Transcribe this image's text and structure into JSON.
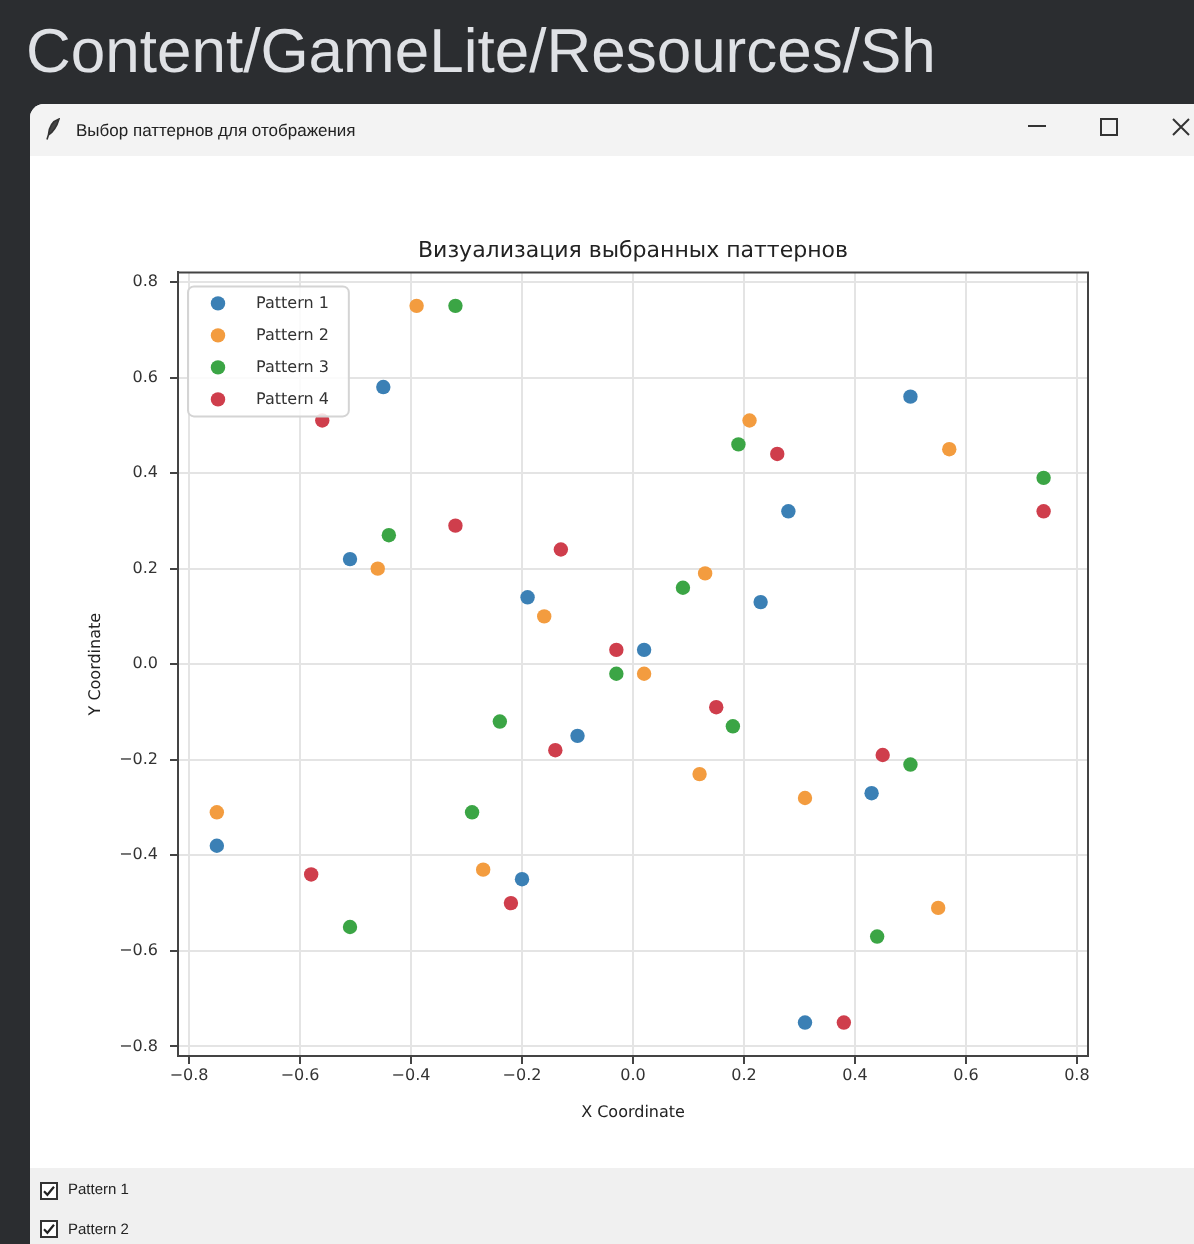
{
  "chart_data": {
    "type": "scatter",
    "title": "Визуализация выбранных паттернов",
    "xlabel": "X Coordinate",
    "ylabel": "Y Coordinate",
    "annotations": [
      "Content/GameLite/Resources/Sh",
      "Выбор паттернов для отображения",
      "Pattern 1",
      "Pattern 2"
    ],
    "series": [
      {
        "name": "Pattern 1",
        "color": "#3b80b5",
        "x": [
          -0.45,
          -0.51,
          -0.19,
          0.02,
          0.5,
          0.28,
          0.23,
          -0.1,
          -0.75,
          -0.2,
          0.43,
          0.31
        ],
        "values": [
          0.58,
          0.22,
          0.14,
          0.03,
          0.56,
          0.32,
          0.13,
          -0.15,
          -0.38,
          -0.45,
          -0.27,
          -0.75
        ]
      },
      {
        "name": "Pattern 2",
        "color": "#f39c3f",
        "x": [
          -0.39,
          -0.46,
          -0.16,
          0.02,
          0.21,
          0.57,
          0.13,
          -0.75,
          -0.27,
          0.12,
          0.31,
          0.55
        ],
        "values": [
          0.75,
          0.2,
          0.1,
          -0.02,
          0.51,
          0.45,
          0.19,
          -0.31,
          -0.43,
          -0.23,
          -0.28,
          -0.51
        ]
      },
      {
        "name": "Pattern 3",
        "color": "#3ba545",
        "x": [
          -0.32,
          -0.44,
          -0.03,
          0.19,
          0.74,
          0.09,
          -0.24,
          -0.29,
          -0.51,
          0.18,
          0.5,
          0.44
        ],
        "values": [
          0.75,
          0.27,
          -0.02,
          0.46,
          0.39,
          0.16,
          -0.12,
          -0.31,
          -0.55,
          -0.13,
          -0.21,
          -0.57
        ]
      },
      {
        "name": "Pattern 4",
        "color": "#cf3e4c",
        "x": [
          -0.56,
          -0.32,
          -0.13,
          -0.03,
          0.26,
          0.74,
          -0.14,
          -0.22,
          -0.58,
          0.15,
          0.45,
          0.38
        ],
        "values": [
          0.51,
          0.29,
          0.24,
          0.03,
          0.44,
          0.32,
          -0.18,
          -0.5,
          -0.44,
          -0.09,
          -0.19,
          -0.75
        ]
      }
    ],
    "xlim": [
      -0.82,
      0.82
    ],
    "ylim": [
      -0.82,
      0.82
    ],
    "xticks": [
      {
        "value": -0.8,
        "label": "−0.8"
      },
      {
        "value": -0.6,
        "label": "−0.6"
      },
      {
        "value": -0.4,
        "label": "−0.4"
      },
      {
        "value": -0.2,
        "label": "−0.2"
      },
      {
        "value": 0,
        "label": "0.0"
      },
      0.2,
      0.4,
      0.6,
      0.8
    ],
    "yticks": [
      {
        "value": -0.8,
        "label": "−0.8"
      },
      {
        "value": -0.6,
        "label": "−0.6"
      },
      {
        "value": -0.4,
        "label": "−0.4"
      },
      {
        "value": -0.2,
        "label": "−0.2"
      },
      {
        "value": 0,
        "label": "0.0"
      },
      0.2,
      0.4,
      0.6,
      0.8
    ],
    "grid": true,
    "legend": "top left",
    "marker": "circle"
  }
}
